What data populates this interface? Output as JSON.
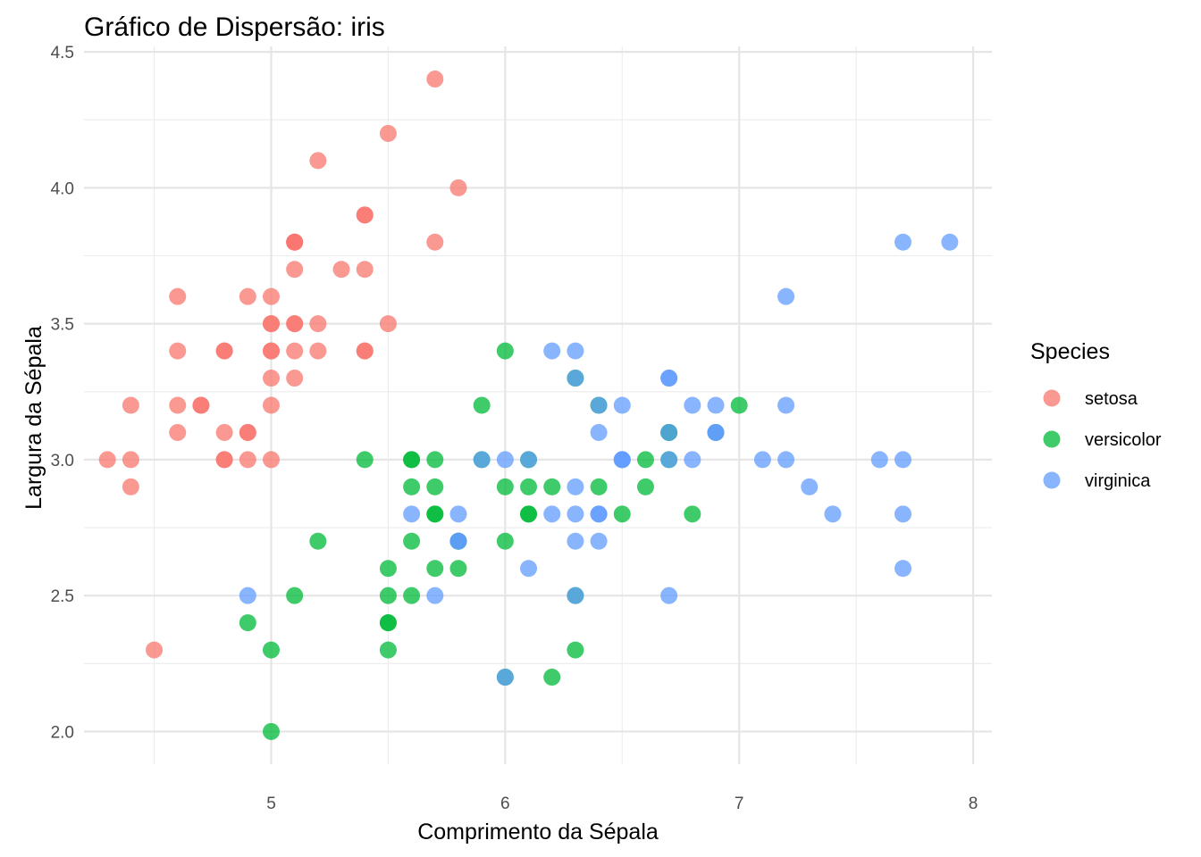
{
  "chart_data": {
    "type": "scatter",
    "title": "Gráfico de Dispersão: iris",
    "xlabel": "Comprimento da Sépala",
    "ylabel": "Largura da Sépala",
    "xlim": [
      4.2,
      8.08
    ],
    "ylim": [
      1.88,
      4.52
    ],
    "x_ticks": [
      5,
      6,
      7,
      8
    ],
    "x_tick_labels": [
      "5",
      "6",
      "7",
      "8"
    ],
    "x_minor_ticks": [
      4.5,
      5.5,
      6.5,
      7.5
    ],
    "y_ticks": [
      2.0,
      2.5,
      3.0,
      3.5,
      4.0,
      4.5
    ],
    "y_tick_labels": [
      "2.0",
      "2.5",
      "3.0",
      "3.5",
      "4.0",
      "4.5"
    ],
    "y_minor_ticks": [
      2.25,
      2.75,
      3.25,
      3.75,
      4.25
    ],
    "grid": true,
    "legend": {
      "title": "Species",
      "position": "right"
    },
    "series": [
      {
        "name": "setosa",
        "color": "#F8766D",
        "points": [
          [
            5.1,
            3.5
          ],
          [
            4.9,
            3.0
          ],
          [
            4.7,
            3.2
          ],
          [
            4.6,
            3.1
          ],
          [
            5.0,
            3.6
          ],
          [
            5.4,
            3.9
          ],
          [
            4.6,
            3.4
          ],
          [
            5.0,
            3.4
          ],
          [
            4.4,
            2.9
          ],
          [
            4.9,
            3.1
          ],
          [
            5.4,
            3.7
          ],
          [
            4.8,
            3.4
          ],
          [
            4.8,
            3.0
          ],
          [
            4.3,
            3.0
          ],
          [
            5.8,
            4.0
          ],
          [
            5.7,
            4.4
          ],
          [
            5.4,
            3.9
          ],
          [
            5.1,
            3.5
          ],
          [
            5.7,
            3.8
          ],
          [
            5.1,
            3.8
          ],
          [
            5.4,
            3.4
          ],
          [
            5.1,
            3.7
          ],
          [
            4.6,
            3.6
          ],
          [
            5.1,
            3.3
          ],
          [
            4.8,
            3.4
          ],
          [
            5.0,
            3.0
          ],
          [
            5.0,
            3.4
          ],
          [
            5.2,
            3.5
          ],
          [
            5.2,
            3.4
          ],
          [
            4.7,
            3.2
          ],
          [
            4.8,
            3.1
          ],
          [
            5.4,
            3.4
          ],
          [
            5.2,
            4.1
          ],
          [
            5.5,
            4.2
          ],
          [
            4.9,
            3.1
          ],
          [
            5.0,
            3.2
          ],
          [
            5.5,
            3.5
          ],
          [
            4.9,
            3.6
          ],
          [
            4.4,
            3.0
          ],
          [
            5.1,
            3.4
          ],
          [
            5.0,
            3.5
          ],
          [
            4.5,
            2.3
          ],
          [
            4.4,
            3.2
          ],
          [
            5.0,
            3.5
          ],
          [
            5.1,
            3.8
          ],
          [
            4.8,
            3.0
          ],
          [
            5.1,
            3.8
          ],
          [
            4.6,
            3.2
          ],
          [
            5.3,
            3.7
          ],
          [
            5.0,
            3.3
          ]
        ]
      },
      {
        "name": "versicolor",
        "color": "#00BA38",
        "points": [
          [
            7.0,
            3.2
          ],
          [
            6.4,
            3.2
          ],
          [
            6.9,
            3.1
          ],
          [
            5.5,
            2.3
          ],
          [
            6.5,
            2.8
          ],
          [
            5.7,
            2.8
          ],
          [
            6.3,
            3.3
          ],
          [
            4.9,
            2.4
          ],
          [
            6.6,
            2.9
          ],
          [
            5.2,
            2.7
          ],
          [
            5.0,
            2.0
          ],
          [
            5.9,
            3.0
          ],
          [
            6.0,
            2.2
          ],
          [
            6.1,
            2.9
          ],
          [
            5.6,
            2.9
          ],
          [
            6.7,
            3.1
          ],
          [
            5.6,
            3.0
          ],
          [
            5.8,
            2.7
          ],
          [
            6.2,
            2.2
          ],
          [
            5.6,
            2.5
          ],
          [
            5.9,
            3.2
          ],
          [
            6.1,
            2.8
          ],
          [
            6.3,
            2.5
          ],
          [
            6.1,
            2.8
          ],
          [
            6.4,
            2.9
          ],
          [
            6.6,
            3.0
          ],
          [
            6.8,
            2.8
          ],
          [
            6.7,
            3.0
          ],
          [
            6.0,
            2.9
          ],
          [
            5.7,
            2.6
          ],
          [
            5.5,
            2.4
          ],
          [
            5.5,
            2.4
          ],
          [
            5.8,
            2.7
          ],
          [
            6.0,
            2.7
          ],
          [
            5.4,
            3.0
          ],
          [
            6.0,
            3.4
          ],
          [
            6.7,
            3.1
          ],
          [
            6.3,
            2.3
          ],
          [
            5.6,
            3.0
          ],
          [
            5.5,
            2.5
          ],
          [
            5.5,
            2.6
          ],
          [
            6.1,
            3.0
          ],
          [
            5.8,
            2.6
          ],
          [
            5.0,
            2.3
          ],
          [
            5.6,
            2.7
          ],
          [
            5.7,
            3.0
          ],
          [
            5.7,
            2.9
          ],
          [
            6.2,
            2.9
          ],
          [
            5.1,
            2.5
          ],
          [
            5.7,
            2.8
          ]
        ]
      },
      {
        "name": "virginica",
        "color": "#619CFF",
        "points": [
          [
            6.3,
            3.3
          ],
          [
            5.8,
            2.7
          ],
          [
            7.1,
            3.0
          ],
          [
            6.3,
            2.9
          ],
          [
            6.5,
            3.0
          ],
          [
            7.6,
            3.0
          ],
          [
            4.9,
            2.5
          ],
          [
            7.3,
            2.9
          ],
          [
            6.7,
            2.5
          ],
          [
            7.2,
            3.6
          ],
          [
            6.5,
            3.2
          ],
          [
            6.4,
            2.7
          ],
          [
            6.8,
            3.0
          ],
          [
            5.7,
            2.5
          ],
          [
            5.8,
            2.8
          ],
          [
            6.4,
            3.2
          ],
          [
            6.5,
            3.0
          ],
          [
            7.7,
            3.8
          ],
          [
            7.7,
            2.6
          ],
          [
            6.0,
            2.2
          ],
          [
            6.9,
            3.2
          ],
          [
            5.6,
            2.8
          ],
          [
            7.7,
            2.8
          ],
          [
            6.3,
            2.7
          ],
          [
            6.7,
            3.3
          ],
          [
            7.2,
            3.2
          ],
          [
            6.2,
            2.8
          ],
          [
            6.1,
            3.0
          ],
          [
            6.4,
            2.8
          ],
          [
            7.2,
            3.0
          ],
          [
            7.4,
            2.8
          ],
          [
            7.9,
            3.8
          ],
          [
            6.4,
            2.8
          ],
          [
            6.3,
            2.8
          ],
          [
            6.1,
            2.6
          ],
          [
            7.7,
            3.0
          ],
          [
            6.3,
            3.4
          ],
          [
            6.4,
            3.1
          ],
          [
            6.0,
            3.0
          ],
          [
            6.9,
            3.1
          ],
          [
            6.7,
            3.1
          ],
          [
            6.9,
            3.1
          ],
          [
            5.8,
            2.7
          ],
          [
            6.8,
            3.2
          ],
          [
            6.7,
            3.3
          ],
          [
            6.7,
            3.0
          ],
          [
            6.3,
            2.5
          ],
          [
            6.5,
            3.0
          ],
          [
            6.2,
            3.4
          ],
          [
            5.9,
            3.0
          ]
        ]
      }
    ]
  }
}
